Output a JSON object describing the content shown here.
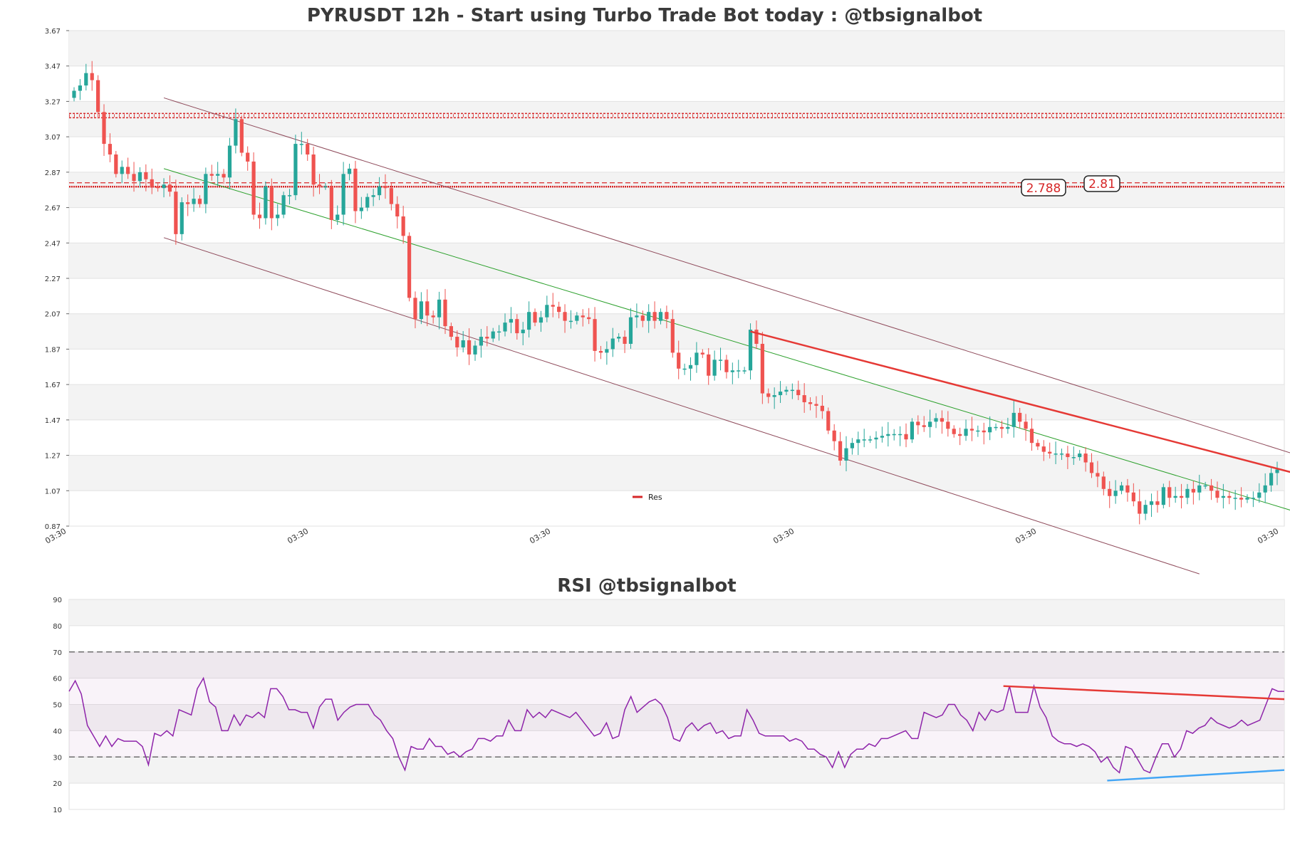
{
  "chart_data": [
    {
      "type": "candlestick",
      "title": "PYRUSDT 12h - Start using Turbo Trade Bot today : @tbsignalbot",
      "y_ticks": [
        "3.67",
        "3.47",
        "3.27",
        "3.07",
        "2.87",
        "2.67",
        "2.47",
        "2.27",
        "2.07",
        "1.87",
        "1.67",
        "1.47",
        "1.27",
        "1.07",
        "0.87"
      ],
      "ylim": [
        0.87,
        3.67
      ],
      "x_ticks": [
        "03:30",
        "03:30",
        "03:30",
        "03:30",
        "03:30",
        "03:30"
      ],
      "grid": true,
      "legend": {
        "placement": "bottom-center",
        "entries": [
          {
            "name": "Res",
            "color": "#d62728"
          }
        ]
      },
      "levels": [
        {
          "value": 3.19,
          "style": "dotted-hatch",
          "color": "#d62728"
        },
        {
          "value": 2.81,
          "label": "2.81",
          "style": "dashed",
          "color": "#d62728"
        },
        {
          "value": 2.788,
          "label": "2.788",
          "style": "dotted",
          "color": "#d62728"
        }
      ],
      "colors": {
        "up": "#26a69a",
        "down": "#ef5350",
        "channel": "#8e4a5a",
        "mid": "#2ca02c",
        "res": "#e53935"
      },
      "close": [
        3.33,
        3.36,
        3.43,
        3.39,
        3.21,
        3.03,
        2.97,
        2.86,
        2.9,
        2.86,
        2.82,
        2.87,
        2.83,
        2.79,
        2.78,
        2.8,
        2.76,
        2.52,
        2.7,
        2.69,
        2.72,
        2.69,
        2.86,
        2.85,
        2.86,
        2.84,
        3.02,
        3.17,
        2.98,
        2.93,
        2.63,
        2.61,
        2.79,
        2.61,
        2.63,
        2.74,
        2.74,
        3.03,
        3.03,
        2.97,
        2.8,
        2.79,
        2.79,
        2.6,
        2.63,
        2.86,
        2.89,
        2.65,
        2.67,
        2.73,
        2.74,
        2.79,
        2.78,
        2.69,
        2.62,
        2.51,
        2.16,
        2.04,
        2.14,
        2.06,
        2.05,
        2.15,
        2.0,
        1.94,
        1.88,
        1.92,
        1.84,
        1.89,
        1.94,
        1.93,
        1.97,
        1.97,
        2.02,
        2.04,
        1.96,
        1.98,
        2.08,
        2.02,
        2.05,
        2.12,
        2.11,
        2.08,
        2.03,
        2.03,
        2.06,
        2.05,
        2.04,
        1.86,
        1.85,
        1.87,
        1.93,
        1.94,
        1.9,
        2.05,
        2.06,
        2.03,
        2.08,
        2.03,
        2.08,
        2.04,
        1.85,
        1.76,
        1.76,
        1.78,
        1.85,
        1.84,
        1.72,
        1.81,
        1.81,
        1.74,
        1.75,
        1.75,
        1.75,
        1.98,
        1.9,
        1.62,
        1.6,
        1.61,
        1.63,
        1.64,
        1.64,
        1.61,
        1.57,
        1.56,
        1.55,
        1.52,
        1.41,
        1.35,
        1.24,
        1.31,
        1.34,
        1.36,
        1.36,
        1.36,
        1.37,
        1.38,
        1.39,
        1.39,
        1.39,
        1.36,
        1.46,
        1.44,
        1.43,
        1.46,
        1.48,
        1.46,
        1.42,
        1.39,
        1.38,
        1.42,
        1.41,
        1.41,
        1.4,
        1.43,
        1.43,
        1.42,
        1.43,
        1.51,
        1.46,
        1.42,
        1.34,
        1.32,
        1.29,
        1.28,
        1.28,
        1.28,
        1.26,
        1.26,
        1.28,
        1.23,
        1.17,
        1.15,
        1.08,
        1.04,
        1.07,
        1.1,
        1.06,
        1.01,
        0.94,
        0.99,
        1.01,
        0.99,
        1.09,
        1.03,
        1.04,
        1.03,
        1.08,
        1.06,
        1.1,
        1.1,
        1.07,
        1.03,
        1.04,
        1.03,
        1.03,
        1.02,
        1.03,
        1.03,
        1.06,
        1.1,
        1.17,
        1.19
      ],
      "rsi_panel": {
        "type": "line",
        "title": "RSI @tbsignalbot",
        "y_ticks": [
          "90",
          "80",
          "70",
          "60",
          "50",
          "40",
          "30",
          "20",
          "10"
        ],
        "ylim": [
          10,
          90
        ],
        "levels": [
          70,
          30
        ],
        "band": [
          30,
          70
        ],
        "series_color": "#8e24aa",
        "values": [
          55,
          59,
          54,
          42,
          38,
          34,
          38,
          34,
          37,
          36,
          36,
          36,
          34,
          27,
          39,
          38,
          40,
          38,
          48,
          47,
          46,
          56,
          60,
          51,
          49,
          40,
          40,
          46,
          42,
          46,
          45,
          47,
          45,
          56,
          56,
          53,
          48,
          48,
          47,
          47,
          41,
          49,
          52,
          52,
          44,
          47,
          49,
          50,
          50,
          50,
          46,
          44,
          40,
          37,
          30,
          25,
          34,
          33,
          33,
          37,
          34,
          34,
          31,
          32,
          30,
          32,
          33,
          37,
          37,
          36,
          38,
          38,
          44,
          40,
          40,
          48,
          45,
          47,
          45,
          48,
          47,
          46,
          45,
          47,
          44,
          41,
          38,
          39,
          43,
          37,
          38,
          48,
          53,
          47,
          49,
          51,
          52,
          50,
          45,
          37,
          36,
          41,
          43,
          40,
          42,
          43,
          39,
          40,
          37,
          38,
          38,
          48,
          44,
          39,
          38,
          38,
          38,
          38,
          36,
          37,
          36,
          33,
          33,
          31,
          30,
          26,
          32,
          26,
          31,
          33,
          33,
          35,
          34,
          37,
          37,
          38,
          39,
          40,
          37,
          37,
          47,
          46,
          45,
          46,
          50,
          50,
          46,
          44,
          40,
          47,
          44,
          48,
          47,
          48,
          57,
          47,
          47,
          47,
          57,
          49,
          45,
          38,
          36,
          35,
          35,
          34,
          35,
          34,
          32,
          28,
          30,
          26,
          24,
          34,
          33,
          29,
          25,
          24,
          30,
          35,
          35,
          30,
          33,
          40,
          39,
          41,
          42,
          45,
          43,
          42,
          41,
          42,
          44,
          42,
          43,
          44,
          50,
          56,
          55,
          55
        ]
      },
      "overlays": {
        "res_line": "Res"
      }
    }
  ],
  "labels": {
    "main_title": "PYRUSDT 12h - Start using Turbo Trade Bot today : @tbsignalbot",
    "rsi_title": "RSI @tbsignalbot",
    "level_a": "2.788",
    "level_b": "2.81",
    "legend_res": "Res"
  }
}
